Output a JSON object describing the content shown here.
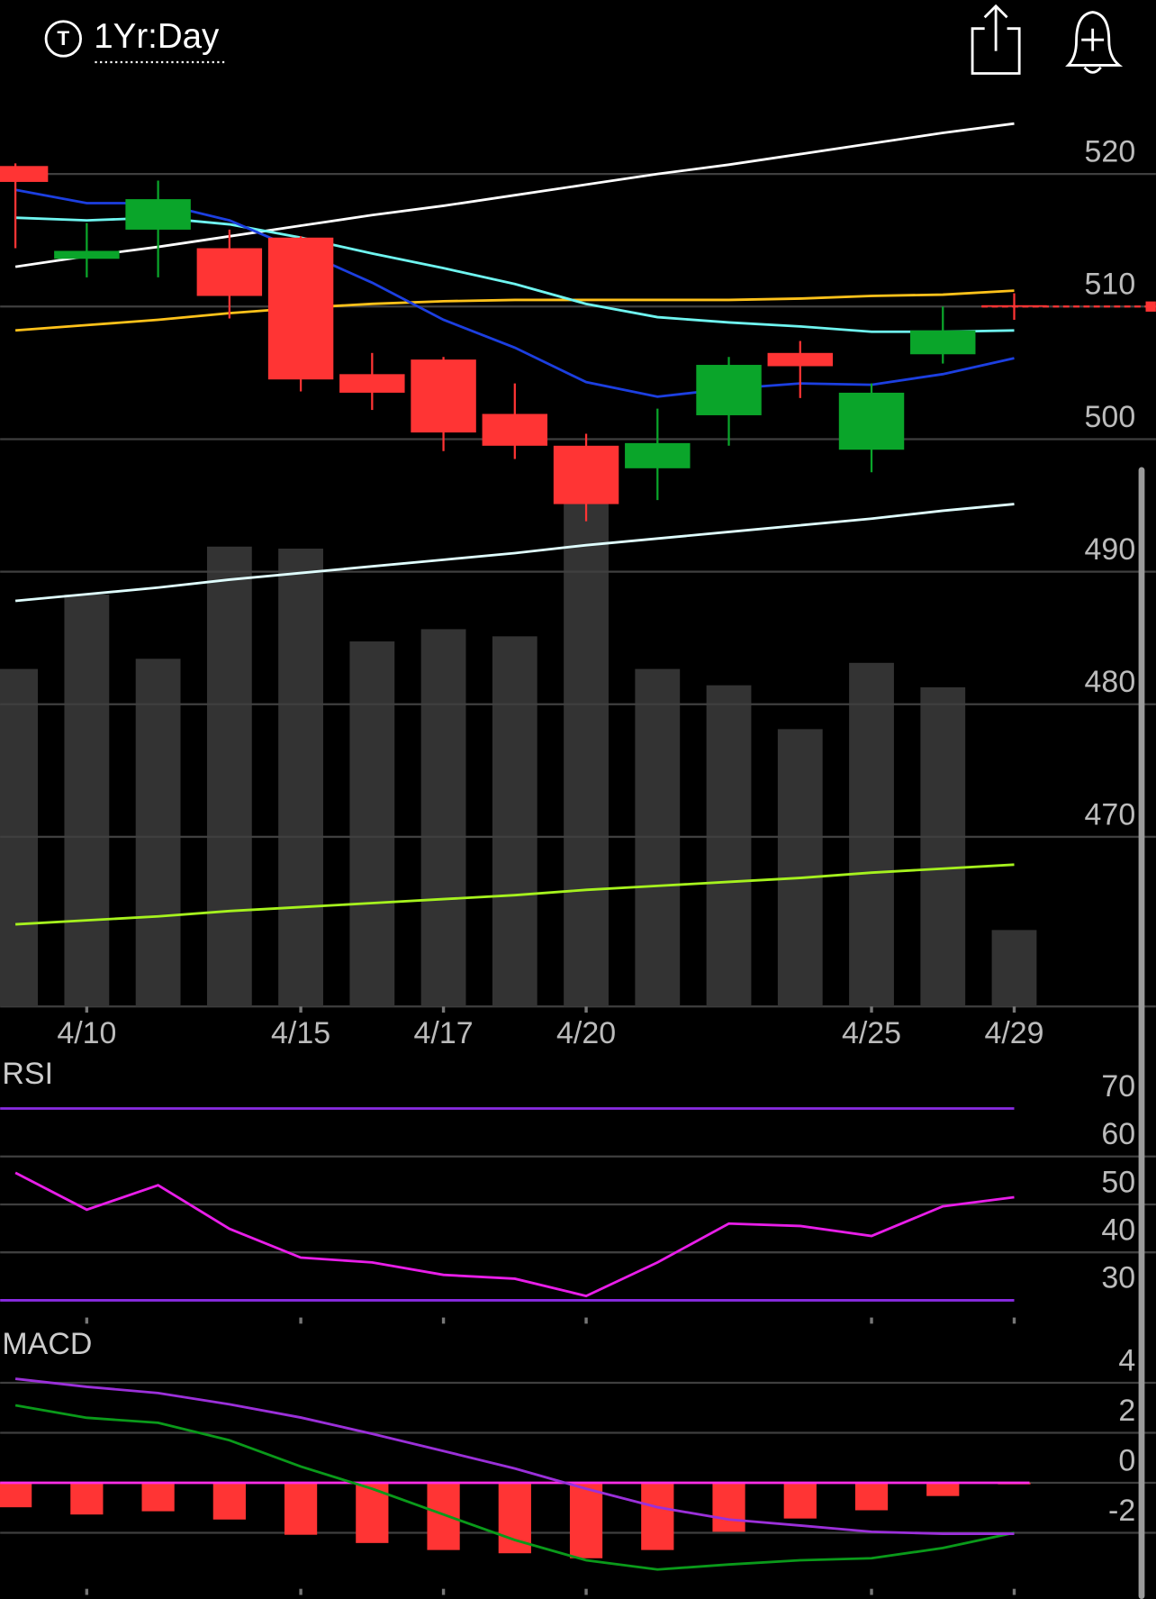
{
  "header": {
    "icon_letter": "T",
    "period": "1Yr:Day"
  },
  "chart_data": [
    {
      "type": "candlestick",
      "categories": [
        null,
        "4/10",
        null,
        null,
        "4/15",
        null,
        "4/17",
        null,
        "4/20",
        null,
        null,
        null,
        "4/25",
        null,
        "4/29"
      ],
      "open": [
        520.6,
        513.6,
        515.8,
        514.4,
        515.2,
        504.9,
        506.0,
        501.9,
        499.5,
        497.8,
        501.8,
        506.5,
        499.2,
        506.4,
        510.1
      ],
      "high": [
        520.8,
        516.3,
        519.5,
        515.8,
        515.3,
        506.5,
        506.2,
        504.2,
        500.4,
        502.3,
        506.2,
        507.4,
        504.2,
        510.0,
        511.0
      ],
      "low": [
        514.4,
        512.2,
        512.2,
        509.1,
        503.6,
        502.2,
        499.1,
        498.5,
        493.8,
        495.4,
        499.5,
        503.1,
        497.5,
        505.7,
        509.0
      ],
      "close": [
        519.4,
        514.2,
        518.1,
        510.8,
        504.5,
        503.5,
        500.5,
        499.5,
        495.1,
        499.7,
        505.6,
        505.5,
        503.5,
        508.2,
        510.0
      ],
      "up_color": "#0aa52a",
      "down_color": "#ff3434",
      "ylim": [
        457.2,
        526.2
      ],
      "yticks": [
        470,
        480,
        490,
        500,
        510,
        520
      ],
      "grid": true,
      "overlays": [
        {
          "color": "#ffffff",
          "values": [
            513.0,
            513.8,
            514.5,
            515.3,
            516.1,
            516.9,
            517.6,
            518.4,
            519.2,
            520.0,
            520.7,
            521.5,
            522.3,
            523.1,
            523.8
          ]
        },
        {
          "color": "#e0ffff",
          "values": [
            487.8,
            488.3,
            488.8,
            489.4,
            489.9,
            490.4,
            490.9,
            491.4,
            492.0,
            492.5,
            493.0,
            493.5,
            494.0,
            494.6,
            495.1
          ]
        },
        {
          "color": "#a6f21e",
          "values": [
            463.4,
            463.7,
            464.0,
            464.4,
            464.7,
            465.0,
            465.3,
            465.6,
            466.0,
            466.3,
            466.6,
            466.9,
            467.3,
            467.6,
            467.9
          ]
        },
        {
          "color": "#ffc21a",
          "values": [
            508.2,
            508.6,
            509.0,
            509.5,
            509.9,
            510.2,
            510.4,
            510.5,
            510.5,
            510.5,
            510.5,
            510.6,
            510.8,
            510.9,
            511.2
          ]
        },
        {
          "color": "#6ff5f0",
          "values": [
            516.7,
            516.5,
            516.7,
            516.2,
            515.2,
            514.0,
            512.9,
            511.7,
            510.2,
            509.2,
            508.8,
            508.5,
            508.1,
            508.1,
            508.2
          ]
        },
        {
          "color": "#1c3fe0",
          "values": [
            518.8,
            517.8,
            517.8,
            516.5,
            514.2,
            511.8,
            509.0,
            506.9,
            504.3,
            503.2,
            503.8,
            504.2,
            504.1,
            504.9,
            506.1
          ]
        }
      ]
    },
    {
      "type": "bar",
      "color": "#333333",
      "values": [
        331,
        404,
        341,
        451,
        449,
        358,
        370,
        363,
        497,
        331,
        315,
        272,
        337,
        313,
        75
      ]
    },
    {
      "type": "line",
      "title": "RSI",
      "color": "#e81ee8",
      "values": [
        56.6,
        48.9,
        54.0,
        44.9,
        38.9,
        37.9,
        35.3,
        34.5,
        30.9,
        37.9,
        46.0,
        45.5,
        43.4,
        49.6,
        51.5
      ],
      "ylim": [
        26.4,
        80
      ],
      "yticks": [
        30,
        40,
        50,
        60,
        70
      ],
      "grid": true,
      "levels": [
        30,
        70
      ],
      "level_color": "#8a2be2"
    },
    {
      "type": "macd",
      "title": "MACD",
      "histogram": [
        -0.98,
        -1.27,
        -1.14,
        -1.47,
        -2.08,
        -2.41,
        -2.69,
        -2.82,
        -3.02,
        -2.69,
        -1.96,
        -1.43,
        -1.1,
        -0.53,
        -0.04
      ],
      "histogram_color": "#ff3434",
      "zero_color": "#ff2ee6",
      "series": [
        {
          "color": "#0a9a1a",
          "values": [
            3.1,
            2.6,
            2.4,
            1.7,
            0.65,
            -0.24,
            -1.27,
            -2.29,
            -3.1,
            -3.47,
            -3.27,
            -3.1,
            -3.02,
            -2.61,
            -2.0
          ]
        },
        {
          "color": "#9b30d9",
          "values": [
            4.16,
            3.84,
            3.59,
            3.14,
            2.61,
            1.96,
            1.27,
            0.57,
            -0.24,
            -0.98,
            -1.47,
            -1.71,
            -1.96,
            -2.04,
            -2.04
          ]
        }
      ],
      "ylim": [
        -4.65,
        6.08
      ],
      "yticks": [
        -2,
        0,
        2,
        4
      ],
      "grid": true
    }
  ]
}
